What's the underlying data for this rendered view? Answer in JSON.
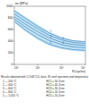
{
  "chart_data": {
    "type": "line",
    "y_label": "σa (MPa)",
    "x_label": "N (cycles)",
    "log": "x",
    "x": [
      10000,
      30000,
      100000,
      300000,
      1000000,
      3000000,
      10000000
    ],
    "xlim": [
      10000,
      10000000
    ],
    "xticks": [
      {
        "value": 10000,
        "label": "10⁴"
      },
      {
        "value": 100000,
        "label": "10⁵"
      },
      {
        "value": 1000000,
        "label": "10⁶"
      },
      {
        "value": 10000000,
        "label": "10⁷"
      }
    ],
    "ylim": [
      0,
      1000
    ],
    "yticks": [
      0,
      200,
      400,
      600,
      800,
      1000
    ],
    "band": {
      "color": "#bfe3f5",
      "upper": [
        950,
        820,
        680,
        560,
        470,
        420,
        400
      ],
      "lower": [
        720,
        560,
        420,
        320,
        260,
        230,
        220
      ]
    },
    "series": [
      {
        "name": "1",
        "color": "#1a5fa8",
        "values": [
          920,
          790,
          650,
          540,
          450,
          405,
          390
        ]
      },
      {
        "name": "2",
        "color": "#1a5fa8",
        "values": [
          870,
          740,
          610,
          500,
          420,
          375,
          360
        ]
      },
      {
        "name": "3",
        "color": "#1a5fa8",
        "values": [
          820,
          690,
          560,
          455,
          380,
          340,
          325
        ]
      },
      {
        "name": "4",
        "color": "#1a5fa8",
        "values": [
          780,
          640,
          510,
          410,
          340,
          300,
          285
        ]
      },
      {
        "name": "5",
        "color": "#1a5fa8",
        "values": [
          740,
          590,
          450,
          350,
          285,
          255,
          240
        ]
      }
    ],
    "notes": [
      "Results obtained with 1.2 kW CO₂ laser, 35 steel specimen and tempered at"
    ],
    "notes_table": [
      [
        "1 — 200 °C",
        "HC1 = 50 J/cm²"
      ],
      [
        "2 — 400 °C",
        "HC2 = 40 J/cm²"
      ],
      [
        "3 — 600 °C",
        "HC3 = 30 J/cm²"
      ],
      [
        "4 — 800 °C",
        "HC4 = 20 J/cm²"
      ],
      [
        "5 — 1,050 °C",
        "HC5 = 10 J/cm²"
      ]
    ]
  }
}
